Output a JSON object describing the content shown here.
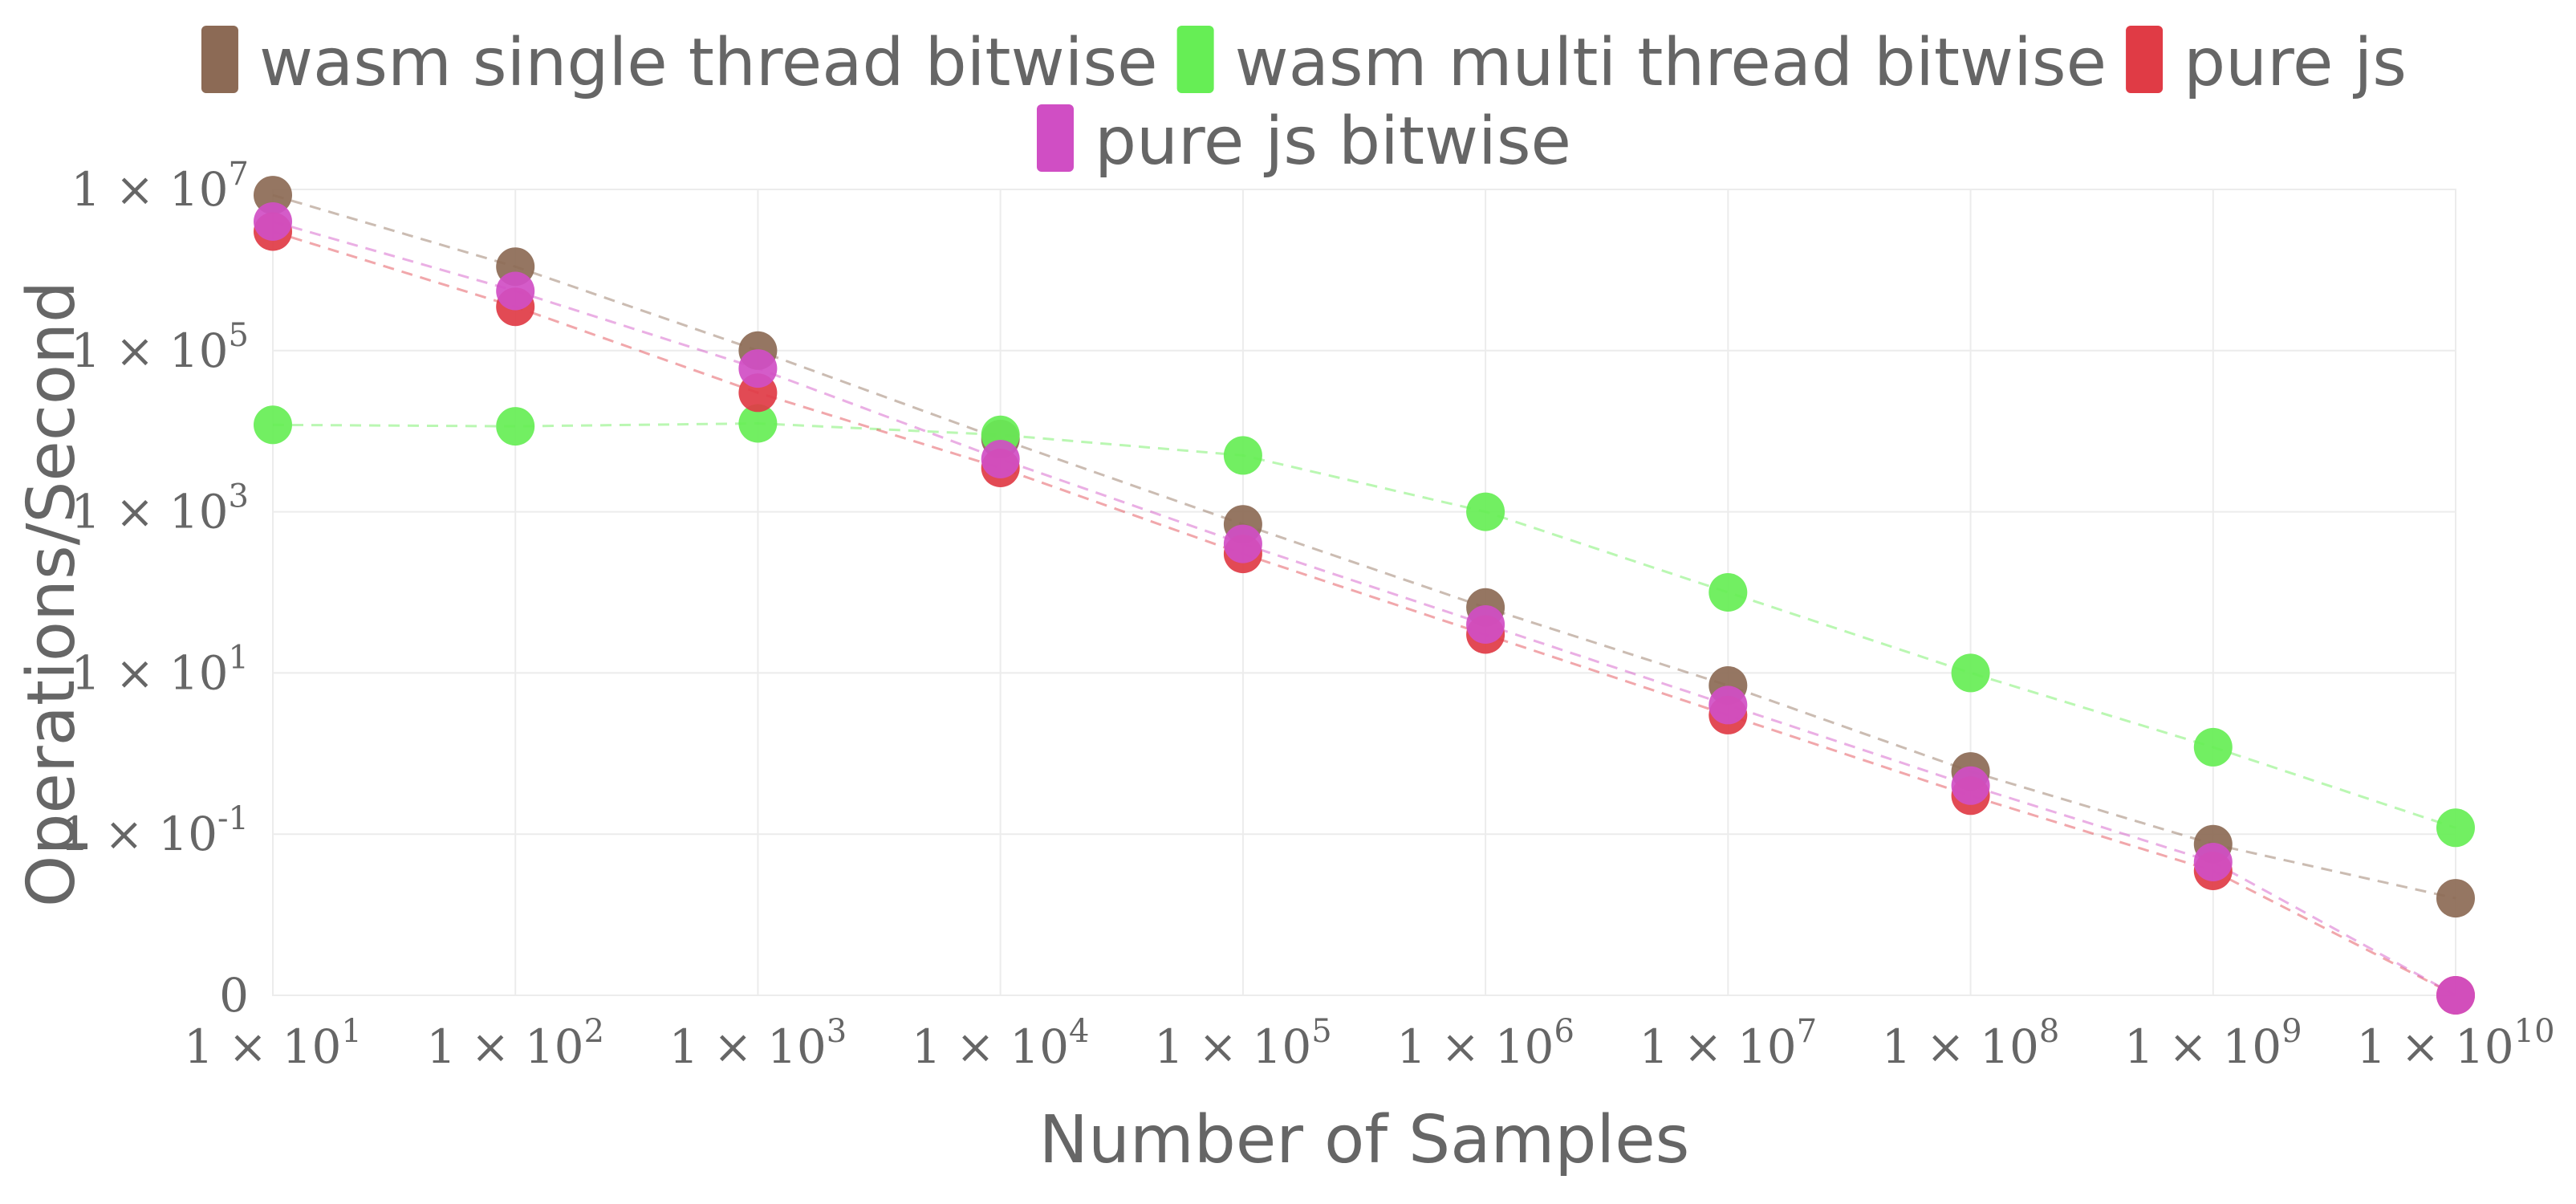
{
  "chart_data": {
    "type": "scatter",
    "title": "",
    "xlabel": "Number of Samples",
    "ylabel": "Operations/Second",
    "x_scale": "log",
    "y_scale": "log",
    "x": [
      10,
      100,
      1000,
      10000,
      100000,
      1000000,
      10000000,
      100000000,
      1000000000,
      10000000000
    ],
    "xlim": [
      10,
      10000000000
    ],
    "ylim": [
      0.001,
      10000000
    ],
    "xticks": [
      {
        "base": "1 × 10",
        "exp": "1"
      },
      {
        "base": "1 × 10",
        "exp": "2"
      },
      {
        "base": "1 × 10",
        "exp": "3"
      },
      {
        "base": "1 × 10",
        "exp": "4"
      },
      {
        "base": "1 × 10",
        "exp": "5"
      },
      {
        "base": "1 × 10",
        "exp": "6"
      },
      {
        "base": "1 × 10",
        "exp": "7"
      },
      {
        "base": "1 × 10",
        "exp": "8"
      },
      {
        "base": "1 × 10",
        "exp": "9"
      },
      {
        "base": "1 × 10",
        "exp": "10"
      }
    ],
    "yticks": [
      {
        "value": 10000000,
        "base": "1 × 10",
        "exp": "7"
      },
      {
        "value": 100000,
        "base": "1 × 10",
        "exp": "5"
      },
      {
        "value": 1000,
        "base": "1 × 10",
        "exp": "3"
      },
      {
        "value": 10,
        "base": "1 × 10",
        "exp": "1"
      },
      {
        "value": 0.1,
        "base": "1 × 10",
        "exp": "-1"
      },
      {
        "value": 0.001,
        "base": "0",
        "exp": ""
      }
    ],
    "grid": true,
    "legend_position": "top-center",
    "series": [
      {
        "name": "wasm single thread bitwise",
        "color": "#8c6a55",
        "values": [
          8500000,
          1100000,
          100000,
          8000,
          700,
          65,
          7,
          0.6,
          0.075,
          0.016
        ]
      },
      {
        "name": "wasm multi thread bitwise",
        "color": "#66ee55",
        "values": [
          12000,
          11500,
          12500,
          9000,
          5000,
          1000,
          100,
          10,
          1.2,
          0.12
        ]
      },
      {
        "name": "pure js",
        "color": "#e03b45",
        "values": [
          3000000,
          350000,
          30000,
          3500,
          300,
          30,
          3,
          0.3,
          0.035,
          0.001
        ]
      },
      {
        "name": "pure js bitwise",
        "color": "#d04ec4",
        "values": [
          4000000,
          550000,
          60000,
          4500,
          400,
          40,
          4,
          0.4,
          0.045,
          0.001
        ]
      }
    ]
  }
}
